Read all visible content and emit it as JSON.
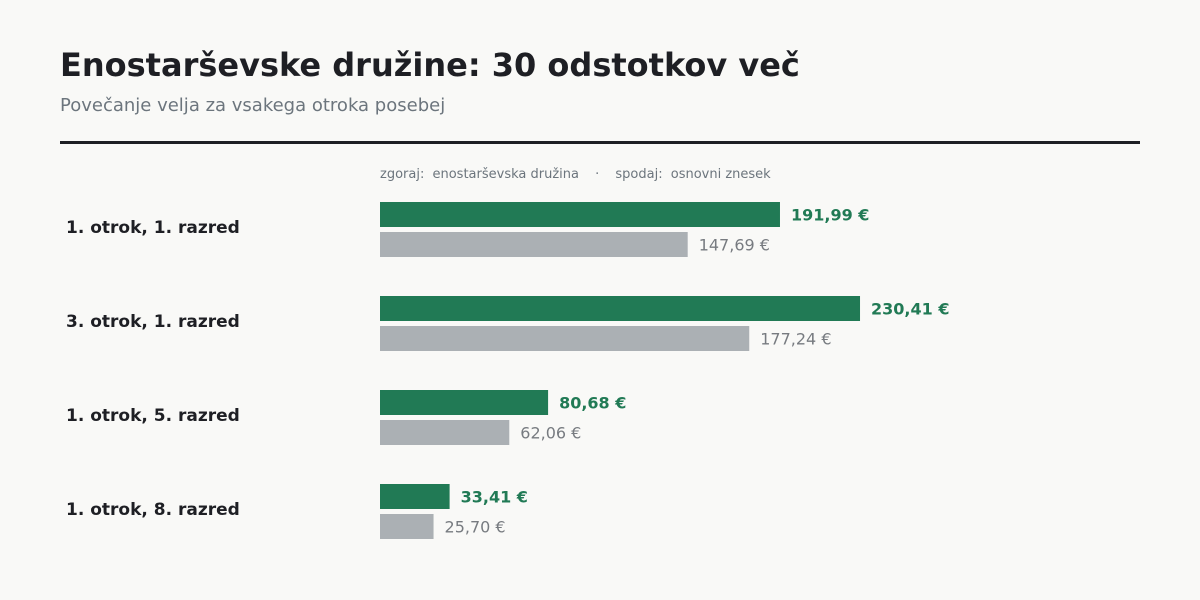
{
  "chart_data": {
    "type": "bar",
    "orientation": "horizontal",
    "title": "Enostarševske družine: 30 odstotkov več",
    "subtitle": "Povečanje velja za vsakega otroka posebej",
    "legend_labels": [
      "zgoraj:",
      "spodaj:"
    ],
    "legend_separator": "·",
    "categories": [
      "1. otrok, 1. razred",
      "3. otrok, 1. razred",
      "1. otrok, 5. razred",
      "1. otrok, 8. razred"
    ],
    "series": [
      {
        "name": "enostarševska družina",
        "color": "#217a55",
        "values": [
          191.99,
          230.41,
          80.68,
          33.41
        ],
        "value_labels": [
          "191,99 €",
          "230,41 €",
          "80,68 €",
          "33,41 €"
        ]
      },
      {
        "name": "osnovni znesek",
        "color": "#abb0b4",
        "values": [
          147.69,
          177.24,
          62.06,
          25.7
        ],
        "value_labels": [
          "147,69 €",
          "177,24 €",
          "62,06 €",
          "25,70 €"
        ]
      }
    ],
    "xlim": [
      0,
      240
    ]
  }
}
